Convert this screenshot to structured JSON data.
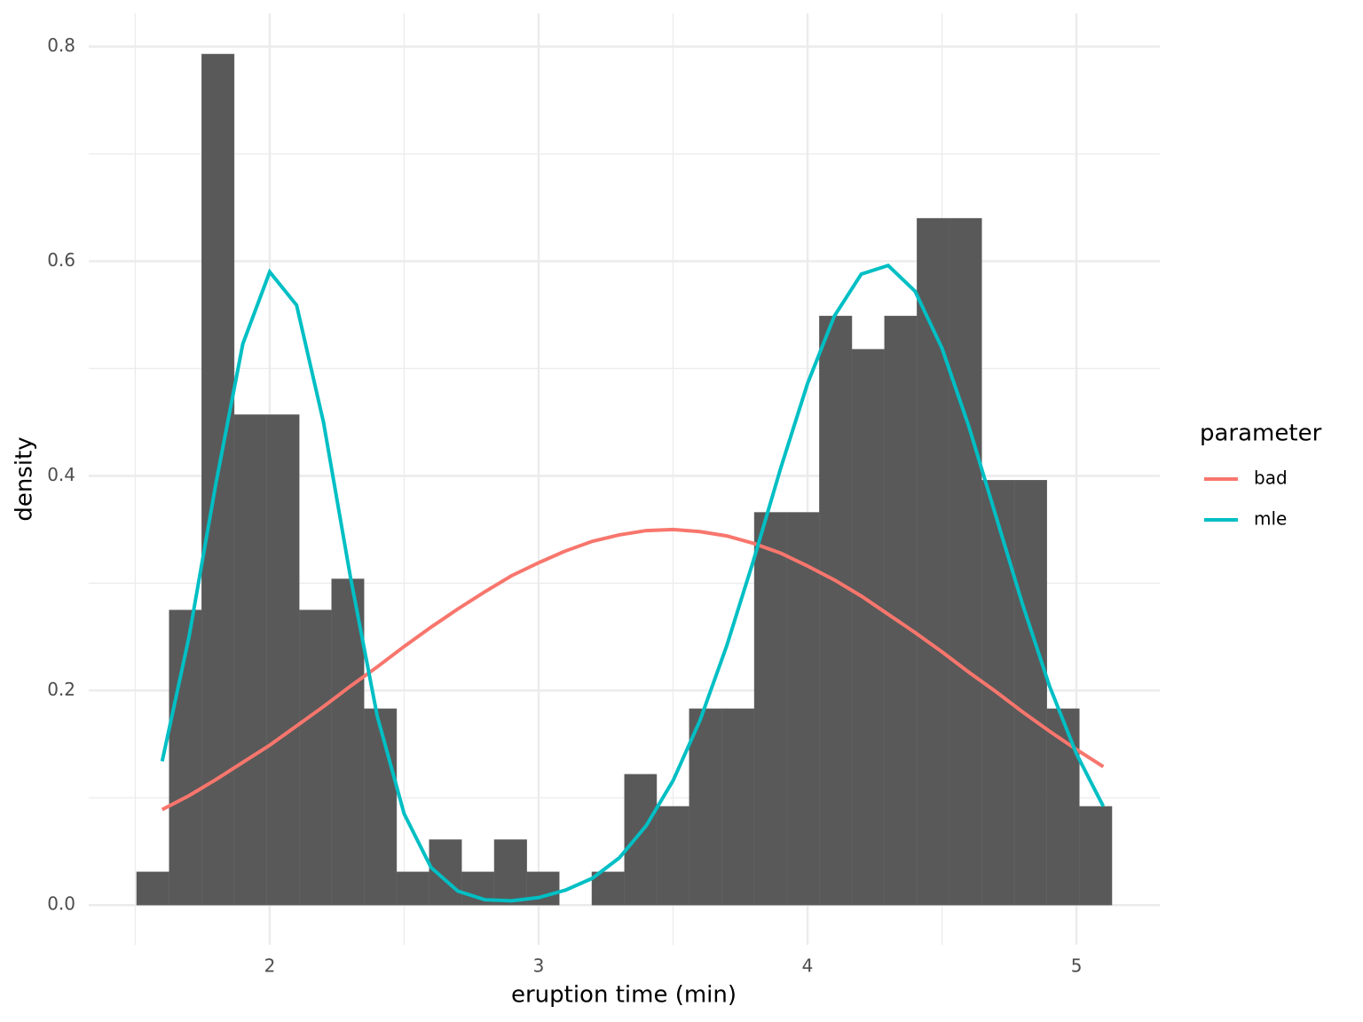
{
  "chart_data": {
    "type": "histogram",
    "x_label": "eruption time (min)",
    "y_label": "density",
    "color": "#595959",
    "bins": [
      1.505,
      1.626,
      1.747,
      1.868,
      1.989,
      2.11,
      2.23,
      2.351,
      2.472,
      2.593,
      2.714,
      2.835,
      2.956,
      3.077,
      3.198,
      3.319,
      3.439,
      3.56,
      3.681,
      3.802,
      3.923,
      4.044,
      4.165,
      4.286,
      4.407,
      4.528,
      4.648,
      4.769,
      4.89,
      5.011,
      5.132
    ],
    "values": [
      0.031,
      0.275,
      0.793,
      0.457,
      0.457,
      0.275,
      0.304,
      0.183,
      0.031,
      0.061,
      0.031,
      0.061,
      0.031,
      0,
      0.031,
      0.122,
      0.092,
      0.183,
      0.183,
      0.366,
      0.366,
      0.549,
      0.518,
      0.549,
      0.64,
      0.64,
      0.396,
      0.396,
      0.183,
      0.092
    ],
    "legend_title": "parameter",
    "series": [
      {
        "name": "bad",
        "color": "#f8766d",
        "x": [
          1.6,
          1.7,
          1.8,
          1.9,
          2.0,
          2.1,
          2.2,
          2.3,
          2.4,
          2.5,
          2.6,
          2.7,
          2.8,
          2.9,
          3.0,
          3.1,
          3.2,
          3.3,
          3.4,
          3.5,
          3.6,
          3.7,
          3.8,
          3.9,
          4.0,
          4.1,
          4.2,
          4.3,
          4.4,
          4.5,
          4.6,
          4.7,
          4.8,
          4.9,
          5.0,
          5.1
        ],
        "values": [
          0.089,
          0.102,
          0.117,
          0.133,
          0.149,
          0.167,
          0.185,
          0.204,
          0.222,
          0.241,
          0.259,
          0.276,
          0.292,
          0.307,
          0.319,
          0.33,
          0.339,
          0.345,
          0.349,
          0.35,
          0.348,
          0.344,
          0.337,
          0.328,
          0.316,
          0.303,
          0.288,
          0.271,
          0.254,
          0.236,
          0.217,
          0.199,
          0.18,
          0.162,
          0.145,
          0.129
        ]
      },
      {
        "name": "mle",
        "color": "#00bfc4",
        "x": [
          1.6,
          1.7,
          1.8,
          1.9,
          2.0,
          2.1,
          2.2,
          2.3,
          2.4,
          2.5,
          2.6,
          2.7,
          2.8,
          2.9,
          3.0,
          3.1,
          3.2,
          3.3,
          3.4,
          3.5,
          3.6,
          3.7,
          3.8,
          3.9,
          4.0,
          4.1,
          4.2,
          4.3,
          4.4,
          4.5,
          4.6,
          4.7,
          4.8,
          4.9,
          5.0,
          5.1
        ],
        "values": [
          0.134,
          0.25,
          0.393,
          0.523,
          0.59,
          0.559,
          0.45,
          0.306,
          0.176,
          0.085,
          0.035,
          0.013,
          0.005,
          0.004,
          0.007,
          0.014,
          0.025,
          0.044,
          0.074,
          0.116,
          0.172,
          0.242,
          0.322,
          0.407,
          0.486,
          0.549,
          0.588,
          0.596,
          0.572,
          0.519,
          0.446,
          0.363,
          0.28,
          0.204,
          0.141,
          0.092
        ]
      }
    ],
    "xlim": [
      1.327,
      5.31
    ],
    "ylim": [
      -0.037,
      0.831
    ],
    "xticks": [
      2,
      3,
      4,
      5
    ],
    "yticks": [
      {
        "value": 0,
        "label": "0.0"
      },
      0.2,
      0.4,
      0.6,
      0.8
    ],
    "x_minor_grid": [
      1.5,
      2.5,
      3.5,
      4.5
    ],
    "y_minor_grid": [
      0.1,
      0.3,
      0.5,
      0.7
    ],
    "grid": true
  }
}
